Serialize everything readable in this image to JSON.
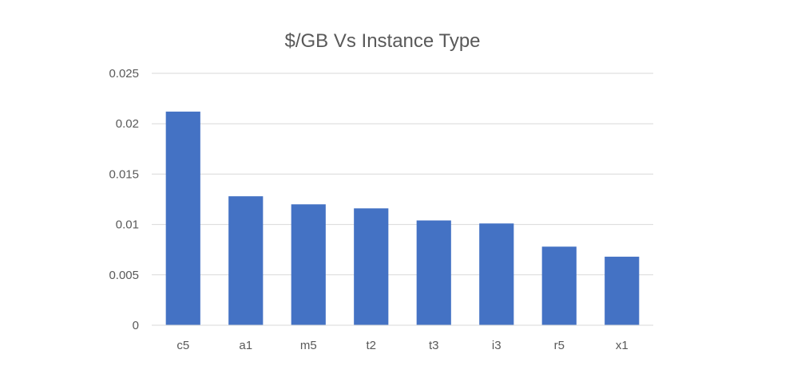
{
  "chart_data": {
    "type": "bar",
    "title": "$/GB Vs Instance Type",
    "xlabel": "",
    "ylabel": "",
    "categories": [
      "c5",
      "a1",
      "m5",
      "t2",
      "t3",
      "i3",
      "r5",
      "x1"
    ],
    "values": [
      0.0212,
      0.0128,
      0.012,
      0.0116,
      0.0104,
      0.0101,
      0.0078,
      0.0068
    ],
    "ylim": [
      0,
      0.025
    ],
    "yticks": [
      "0",
      "0.005",
      "0.01",
      "0.015",
      "0.02",
      "0.025"
    ],
    "ytick_values": [
      0,
      0.005,
      0.01,
      0.015,
      0.02,
      0.025
    ],
    "grid": true,
    "legend": "none",
    "bar_color": "#4472C4"
  }
}
